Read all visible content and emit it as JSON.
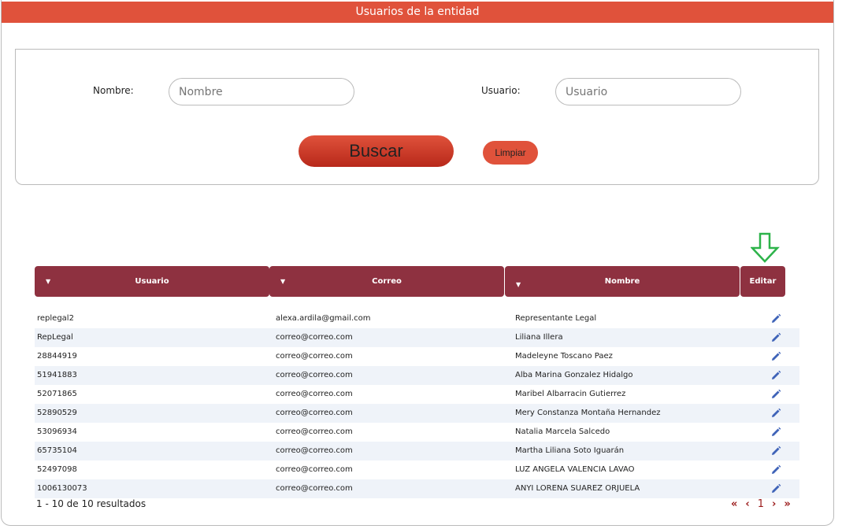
{
  "title": "Usuarios de la entidad",
  "filters": {
    "nombre_label": "Nombre:",
    "nombre_placeholder": "Nombre",
    "usuario_label": "Usuario:",
    "usuario_placeholder": "Usuario",
    "buscar": "Buscar",
    "limpiar": "Limpiar"
  },
  "table": {
    "columns": [
      "Usuario",
      "Correo",
      "Nombre",
      "Editar"
    ],
    "rows": [
      [
        "replegal2",
        "alexa.ardila@gmail.com",
        "Representante Legal"
      ],
      [
        "RepLegal",
        "correo@correo.com",
        "Liliana Illera"
      ],
      [
        "28844919",
        "correo@correo.com",
        "Madeleyne Toscano Paez"
      ],
      [
        "51941883",
        "correo@correo.com",
        "Alba Marina Gonzalez Hidalgo"
      ],
      [
        "52071865",
        "correo@correo.com",
        "Maribel Albarracin Gutierrez"
      ],
      [
        "52890529",
        "correo@correo.com",
        "Mery Constanza Montaña Hernandez"
      ],
      [
        "53096934",
        "correo@correo.com",
        "Natalia Marcela Salcedo"
      ],
      [
        "65735104",
        "correo@correo.com",
        "Martha Liliana Soto Iguarán"
      ],
      [
        "52497098",
        "correo@correo.com",
        "LUZ ANGELA VALENCIA LAVAO"
      ],
      [
        "1006130073",
        "correo@correo.com",
        "ANYI LORENA SUAREZ ORJUELA"
      ]
    ]
  },
  "footer": {
    "results": "1 - 10 de 10 resultados",
    "page": "1",
    "first": "«",
    "prev": "‹",
    "next": "›",
    "last": "»"
  },
  "colors": {
    "header": "#e0523b",
    "table_header": "#8e3140",
    "arrow": "#2db34a",
    "pencil": "#3f63b8"
  }
}
